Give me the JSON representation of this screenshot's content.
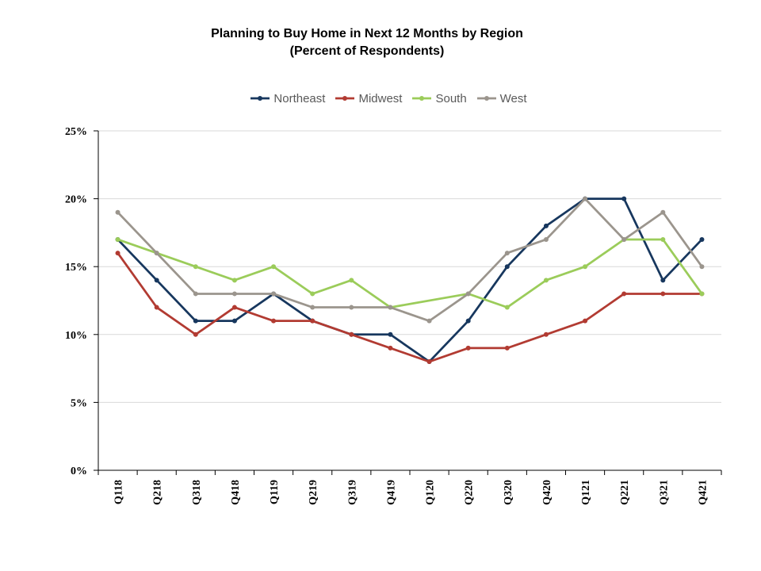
{
  "chart_data": {
    "type": "line",
    "title": "Planning to Buy Home in Next 12 Months by Region",
    "subtitle": "(Percent of Respondents)",
    "xlabel": "",
    "ylabel": "",
    "ylim": [
      0,
      25
    ],
    "y_ticks": [
      "0%",
      "5%",
      "10%",
      "15%",
      "20%",
      "25%"
    ],
    "y_tick_values": [
      0,
      5,
      10,
      15,
      20,
      25
    ],
    "grid": "horizontal",
    "legend": "top",
    "categories": [
      "Q118",
      "Q218",
      "Q318",
      "Q418",
      "Q119",
      "Q219",
      "Q319",
      "Q419",
      "Q120",
      "Q220",
      "Q320",
      "Q420",
      "Q121",
      "Q221",
      "Q321",
      "Q421"
    ],
    "series": [
      {
        "name": "Northeast",
        "color": "#17375e",
        "values": [
          17,
          14,
          11,
          11,
          13,
          11,
          10,
          10,
          8,
          11,
          15,
          18,
          20,
          20,
          14,
          17
        ]
      },
      {
        "name": "Midwest",
        "color": "#b23b32",
        "values": [
          16,
          12,
          10,
          12,
          11,
          11,
          10,
          9,
          8,
          9,
          9,
          10,
          11,
          13,
          13,
          13
        ]
      },
      {
        "name": "South",
        "color": "#9bcc5a",
        "values": [
          17,
          16,
          15,
          14,
          15,
          13,
          14,
          12,
          null,
          13,
          12,
          14,
          15,
          17,
          17,
          13
        ]
      },
      {
        "name": "West",
        "color": "#9b958d",
        "values": [
          19,
          16,
          13,
          13,
          13,
          12,
          12,
          12,
          11,
          13,
          16,
          17,
          20,
          17,
          19,
          15
        ]
      }
    ]
  }
}
